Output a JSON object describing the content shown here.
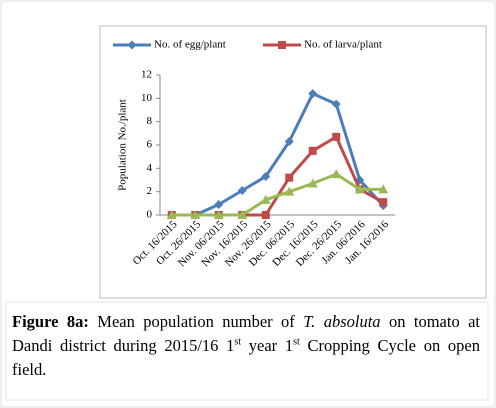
{
  "chart_data": {
    "type": "line",
    "y_label": "Population No./plant",
    "categories": [
      "Oct. 16/2015",
      "Oct. 26/2015",
      "Nov. 06/2015",
      "Nov. 16/2015",
      "Nov. 26/2015",
      "Dec. 06/2015",
      "Dec. 16/2015",
      "Dec. 26/2015",
      "Jan. 06/2016",
      "Jan. 16/2016"
    ],
    "series": [
      {
        "name": "No. of egg/plant",
        "color": "#4a7ebb",
        "marker": "diamond",
        "values": [
          0,
          0,
          0.9,
          2.1,
          3.3,
          6.3,
          10.4,
          9.5,
          3.0,
          0.8
        ]
      },
      {
        "name": "No. of larva/plant",
        "color": "#be4b48",
        "marker": "square",
        "values": [
          0,
          0,
          0,
          0,
          0,
          3.2,
          5.5,
          6.7,
          2.2,
          1.1
        ]
      },
      {
        "color": "#98b954",
        "marker": "triangle",
        "values": [
          0,
          0,
          0,
          0,
          1.3,
          2.0,
          2.7,
          3.5,
          2.2,
          2.2
        ]
      }
    ],
    "ylim": [
      0,
      12
    ],
    "yticks": [
      0,
      2,
      4,
      6,
      8,
      10,
      12
    ],
    "grid": false,
    "legend": "top"
  },
  "caption": {
    "label": "Figure 8a:",
    "parts": [
      "Mean population number of ",
      "T. absoluta",
      " on tomato at Dandi district during 2015/16 1",
      "st",
      " year 1",
      "st",
      " Cropping Cycle on open field."
    ]
  }
}
